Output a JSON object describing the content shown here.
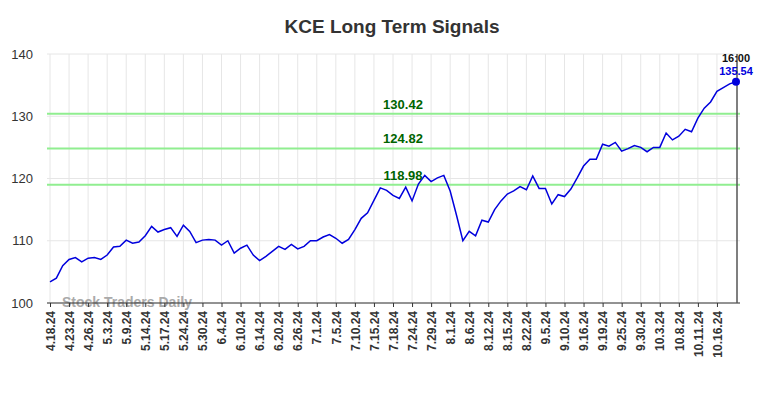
{
  "chart_data": {
    "type": "line",
    "title": "KCE Long Term Signals",
    "categories": [
      "4.18.24",
      null,
      null,
      "4.23.24",
      null,
      null,
      "4.26.24",
      null,
      null,
      "5.3.24",
      null,
      null,
      "5.9.24",
      null,
      null,
      "5.14.24",
      null,
      null,
      "5.17.24",
      null,
      null,
      "5.24.24",
      null,
      null,
      "5.30.24",
      null,
      null,
      "6.4.24",
      null,
      null,
      "6.10.24",
      null,
      null,
      "6.14.24",
      null,
      null,
      "6.20.24",
      null,
      null,
      "6.26.24",
      null,
      null,
      "7.1.24",
      null,
      null,
      "7.5.24",
      null,
      null,
      "7.10.24",
      null,
      null,
      "7.15.24",
      null,
      null,
      "7.18.24",
      null,
      null,
      "7.24.24",
      null,
      null,
      "7.29.24",
      null,
      null,
      "8.1.24",
      null,
      null,
      "8.6.24",
      null,
      null,
      "8.12.24",
      null,
      null,
      "8.15.24",
      null,
      null,
      "8.22.24",
      null,
      null,
      "9.5.24",
      null,
      null,
      "9.10.24",
      null,
      null,
      "9.16.24",
      null,
      null,
      "9.19.24",
      null,
      null,
      "9.25.24",
      null,
      null,
      "9.30.24",
      null,
      null,
      "10.3.24",
      null,
      null,
      "10.8.24",
      null,
      null,
      "10.11.24",
      null,
      null,
      "10.16.24",
      null,
      null,
      null
    ],
    "values": [
      103.4,
      104,
      106,
      107,
      107.3,
      106.6,
      107.2,
      107.3,
      107,
      107.7,
      109,
      109.1,
      110.1,
      109.6,
      109.8,
      110.8,
      112.3,
      111.4,
      111.8,
      112.1,
      110.7,
      112.5,
      111.5,
      109.7,
      110.1,
      110.2,
      110.1,
      109.3,
      110,
      108,
      108.8,
      109.3,
      107.7,
      106.8,
      107.5,
      108.3,
      109.1,
      108.6,
      109.4,
      108.7,
      109.1,
      110,
      110,
      110.6,
      111,
      110.4,
      109.6,
      110.2,
      111.8,
      113.6,
      114.5,
      116.5,
      118.5,
      118.1,
      117.3,
      116.8,
      118.6,
      116.4,
      119.1,
      120.5,
      119.5,
      120.1,
      120.5,
      118,
      114.1,
      110,
      111.5,
      110.8,
      113.3,
      113,
      115,
      116.4,
      117.5,
      118,
      118.7,
      118.2,
      120.4,
      118.4,
      118.4,
      115.9,
      117.4,
      117.1,
      118.3,
      120.1,
      122,
      123.1,
      123.1,
      125.5,
      125.2,
      125.8,
      124.4,
      124.8,
      125.3,
      125,
      124.3,
      125,
      125,
      127.3,
      126.2,
      126.8,
      127.9,
      127.5,
      129.7,
      131.3,
      132.3,
      134,
      134.6,
      135.2,
      135.54
    ],
    "color": "#0000dd",
    "ylim": [
      100,
      140
    ],
    "yticks": [
      100,
      110,
      120,
      130,
      140
    ],
    "grid": true,
    "levels": [
      118.98,
      124.82,
      130.42
    ],
    "last_time": "16:00",
    "watermark": "Stock Traders Daily"
  }
}
